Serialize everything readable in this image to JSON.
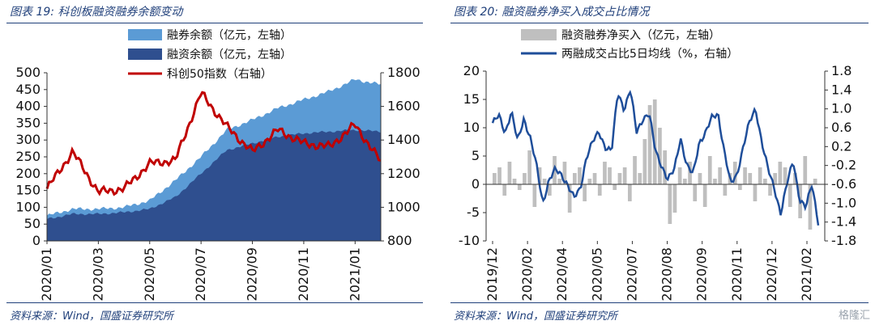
{
  "left_panel": {
    "figure_title": "图表 19:  科创板融资融券余额变动",
    "source": "资料来源：Wind，国盛证券研究所"
  },
  "right_panel": {
    "figure_title": "图表 20:  融资融券净买入成交占比情况",
    "source": "资料来源：Wind，国盛证券研究所"
  },
  "watermark": "格隆汇",
  "colors": {
    "title_blue": "#1f3f7a",
    "margin_total": "#5b9bd5",
    "financing_balance": "#2f4f8f",
    "star50": "#c00000",
    "net_buy": "#bfbfbf",
    "ratio_line": "#1f4e9a"
  },
  "chart_data": [
    {
      "type": "area",
      "title": "",
      "x_ticks": [
        "2020/01",
        "2020/03",
        "2020/05",
        "2020/07",
        "2020/09",
        "2020/11",
        "2021/01"
      ],
      "x": [
        "2020/01",
        "2020/02",
        "2020/03",
        "2020/04",
        "2020/05",
        "2020/06",
        "2020/07",
        "2020/08",
        "2020/09",
        "2020/10",
        "2020/11",
        "2020/12",
        "2021/01",
        "2021/02"
      ],
      "ylim": [
        0,
        500
      ],
      "y_ticks": [
        "0",
        "50",
        "100",
        "150",
        "200",
        "250",
        "300",
        "350",
        "400",
        "450",
        "500"
      ],
      "y2lim": [
        800,
        1800
      ],
      "y2_ticks": [
        "800",
        "1000",
        "1200",
        "1400",
        "1600",
        "1800"
      ],
      "legend_position": "top",
      "series": [
        {
          "name": "融券余额（亿元，左轴）",
          "kind": "area",
          "axis": "left",
          "values": [
            75,
            95,
            95,
            100,
            120,
            180,
            250,
            330,
            360,
            395,
            420,
            445,
            480,
            465
          ]
        },
        {
          "name": "融资余额（亿元，左轴）",
          "kind": "area",
          "axis": "left",
          "values": [
            65,
            80,
            80,
            85,
            95,
            130,
            200,
            270,
            290,
            310,
            320,
            325,
            330,
            325
          ]
        },
        {
          "name": "科创50指数（右轴）",
          "kind": "line",
          "axis": "right",
          "values": [
            1110,
            1330,
            1090,
            1110,
            1260,
            1280,
            1680,
            1480,
            1330,
            1460,
            1380,
            1360,
            1490,
            1270
          ]
        }
      ]
    },
    {
      "type": "bar",
      "title": "",
      "x_ticks": [
        "2019/12",
        "2020/02",
        "2020/04",
        "2020/05",
        "2020/07",
        "2020/08",
        "2020/09",
        "2020/11",
        "2020/12",
        "2021/02"
      ],
      "ylim": [
        -10,
        20
      ],
      "y_ticks": [
        "-10",
        "-5",
        "0",
        "5",
        "10",
        "15",
        "20"
      ],
      "y2lim": [
        -1.8,
        1.8
      ],
      "y2_ticks": [
        "-1.8",
        "-1.4",
        "-1.0",
        "-0.6",
        "-0.2",
        "0.2",
        "0.6",
        "1.0",
        "1.4",
        "1.8"
      ],
      "legend_position": "top",
      "series": [
        {
          "name": "融资融券净买入（亿元，左轴）",
          "kind": "bar",
          "axis": "left",
          "values": [
            2,
            3,
            -2,
            4,
            1,
            -1,
            2,
            6,
            -4,
            3,
            1,
            -2,
            5,
            1,
            4,
            -5,
            2,
            3,
            -3,
            1,
            2,
            -2,
            4,
            3,
            -1,
            2,
            3,
            -3,
            5,
            2,
            8,
            14,
            15,
            10,
            6,
            -7,
            -5,
            3,
            1,
            4,
            -3,
            2,
            -4,
            5,
            1,
            3,
            -2,
            2,
            4,
            -1,
            3,
            2,
            -3,
            3,
            1,
            -2,
            2,
            4,
            3,
            -4,
            2,
            -6,
            5,
            -8,
            1
          ]
        },
        {
          "name": "两融成交占比5日均线（%，右轴）",
          "kind": "line",
          "axis": "right",
          "values": [
            0.7,
            0.85,
            0.5,
            0.95,
            0.3,
            0.8,
            0.4,
            -0.2,
            -1.0,
            -0.5,
            -0.3,
            -0.4,
            -0.6,
            -0.9,
            -0.7,
            0.0,
            0.3,
            0.5,
            0.2,
            0.1,
            1.35,
            1.0,
            1.4,
            0.5,
            0.8,
            0.9,
            0.1,
            -0.2,
            -0.5,
            -0.3,
            0.4,
            -0.2,
            -0.4,
            0.3,
            0.5,
            0.8,
            0.9,
            0.1,
            -0.6,
            -0.4,
            0.2,
            0.7,
            1.0,
            0.3,
            -0.3,
            -0.7,
            -1.2,
            -0.6,
            -0.1,
            -0.9,
            -1.1,
            -0.6,
            -1.4
          ]
        }
      ]
    }
  ]
}
